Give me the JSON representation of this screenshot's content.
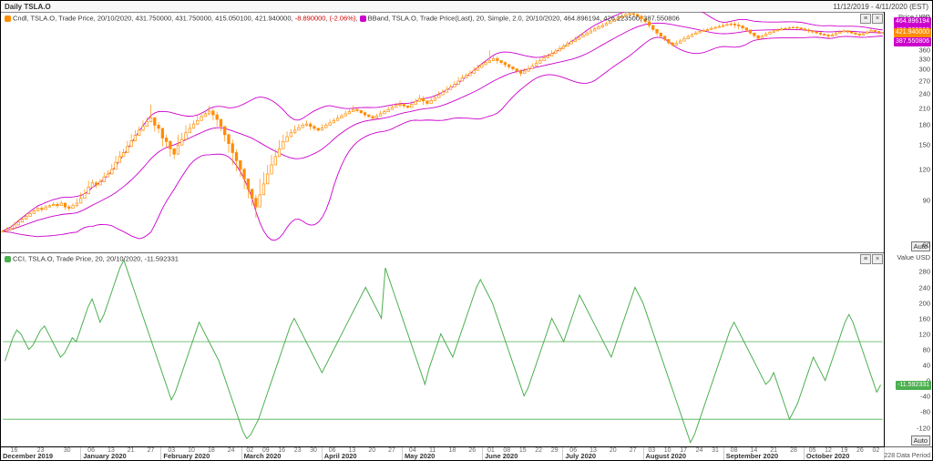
{
  "header": {
    "title": "Daily TSLA.O",
    "dateRange": "11/12/2019 - 4/11/2020 (EST)"
  },
  "footer": "228 Data Period",
  "xaxis": {
    "months": [
      "December 2019",
      "January 2020",
      "February 2020",
      "March 2020",
      "April 2020",
      "May 2020",
      "June 2020",
      "July 2020",
      "August 2020",
      "September 2020",
      "October 2020"
    ],
    "days_per_month": [
      "16 23 30",
      "06 13 21 27",
      "03 10 18 24",
      "02 09 16 23 30",
      "06 13 20 27",
      "04 11 18 26",
      "01 08 15 22 29",
      "06 13 20 27",
      "03 10 17 24 31",
      "08 14 21 28",
      "05 12 19 26 02"
    ]
  },
  "pane1": {
    "legend": {
      "cndl": {
        "color": "#ff8c00",
        "text": "Cndl, TSLA.O, Trade Price, 20/10/2020, 431.750000, 431.750000, 415.050100, 421.940000,"
      },
      "chg": {
        "abs": "-8.890000",
        "pct": "(-2.06%)",
        "color": "#d00000"
      },
      "bband": {
        "color": "#cc00cc",
        "text": "BBand, TSLA.O, Trade Price(Last), 20, Simple, 2.0, 20/10/2020, 464.896194, 426.223500, 387.550806"
      }
    },
    "yaxis": {
      "label": "Price\nUSD",
      "scale": "log",
      "min": 56,
      "max": 510,
      "ticks": [
        480,
        450,
        420,
        390,
        360,
        330,
        300,
        270,
        240,
        210,
        180,
        150,
        120,
        90,
        60
      ],
      "markers": [
        {
          "v": 464.896194,
          "label": "464.896194",
          "bg": "#cc00cc"
        },
        {
          "v": 426.2235,
          "label": "426.223500",
          "bg": "#cc00cc"
        },
        {
          "v": 421.94,
          "label": "421.940000",
          "bg": "#ff8c00"
        },
        {
          "v": 387.550806,
          "label": "387.550806",
          "bg": "#cc00cc"
        }
      ]
    },
    "auto": "Auto",
    "series": {
      "close": [
        68,
        69,
        70,
        72,
        74,
        76,
        78,
        80,
        82,
        84,
        83,
        85,
        86,
        87,
        86,
        88,
        85,
        84,
        86,
        88,
        92,
        96,
        102,
        106,
        104,
        107,
        112,
        115,
        120,
        128,
        135,
        140,
        148,
        156,
        164,
        172,
        178,
        186,
        193,
        180,
        175,
        160,
        155,
        145,
        138,
        150,
        158,
        168,
        175,
        182,
        188,
        195,
        200,
        205,
        198,
        190,
        178,
        165,
        152,
        140,
        130,
        120,
        110,
        100,
        92,
        85,
        95,
        105,
        115,
        125,
        135,
        145,
        155,
        162,
        168,
        172,
        176,
        180,
        182,
        178,
        175,
        172,
        176,
        180,
        184,
        188,
        192,
        196,
        200,
        204,
        208,
        206,
        202,
        198,
        195,
        192,
        196,
        200,
        204,
        208,
        212,
        216,
        218,
        215,
        212,
        218,
        224,
        230,
        225,
        220,
        226,
        232,
        238,
        244,
        250,
        256,
        262,
        270,
        278,
        284,
        290,
        298,
        306,
        314,
        320,
        326,
        332,
        326,
        320,
        314,
        308,
        302,
        296,
        290,
        296,
        302,
        310,
        318,
        326,
        334,
        340,
        348,
        356,
        364,
        372,
        380,
        388,
        396,
        404,
        412,
        420,
        428,
        436,
        444,
        450,
        458,
        466,
        474,
        482,
        490,
        498,
        502,
        498,
        490,
        478,
        466,
        450,
        434,
        420,
        408,
        396,
        384,
        376,
        382,
        390,
        398,
        406,
        414,
        420,
        426,
        430,
        434,
        438,
        442,
        446,
        450,
        454,
        456,
        452,
        448,
        440,
        432,
        420,
        410,
        400,
        408,
        416,
        422,
        428,
        432,
        436,
        438,
        440,
        442,
        440,
        436,
        432,
        428,
        424,
        420,
        416,
        412,
        408,
        412,
        418,
        424,
        428,
        424,
        420,
        416,
        412,
        418,
        424,
        430,
        426,
        422,
        421.94
      ],
      "high_off": [
        1,
        1.5,
        1,
        2,
        1.5,
        1,
        2,
        1.5,
        1,
        2,
        2.5,
        1.5,
        1,
        2,
        3,
        2,
        3,
        2.5,
        2,
        4,
        5,
        4,
        6,
        3,
        4,
        3,
        5,
        4,
        6,
        8,
        7,
        5,
        8,
        10,
        8,
        6,
        10,
        8,
        25,
        12,
        10,
        15,
        10,
        12,
        8,
        15,
        10,
        12,
        8,
        6,
        10,
        8,
        6,
        10,
        12,
        14,
        10,
        12,
        15,
        18,
        14,
        10,
        12,
        10,
        8,
        10,
        15,
        12,
        10,
        12,
        10,
        12,
        10,
        8,
        6,
        8,
        6,
        4,
        6,
        8,
        6,
        4,
        6,
        4,
        6,
        4,
        6,
        4,
        6,
        4,
        8,
        6,
        4,
        6,
        4,
        6,
        4,
        6,
        4,
        6,
        4,
        6,
        8,
        6,
        4,
        8,
        6,
        8,
        10,
        6,
        8,
        6,
        8,
        6,
        8,
        6,
        8,
        10,
        8,
        6,
        8,
        10,
        8,
        6,
        8,
        32,
        10,
        12,
        8,
        10,
        8,
        6,
        8,
        10,
        8,
        10,
        8,
        10,
        8,
        10,
        8,
        10,
        8,
        10,
        8,
        10,
        8,
        10,
        8,
        10,
        8,
        10,
        8,
        10,
        12,
        8,
        10,
        8,
        10,
        25,
        12,
        14,
        16,
        12,
        18,
        14,
        12,
        10,
        12,
        10,
        8,
        10,
        8,
        10,
        8,
        10,
        8,
        6,
        8,
        6,
        8,
        6,
        8,
        6,
        8,
        10,
        8,
        12,
        14,
        16,
        12,
        10,
        8,
        10,
        8,
        6,
        8,
        6,
        8,
        6,
        8,
        6,
        8,
        6,
        8,
        6,
        8,
        10,
        8,
        6,
        8,
        6,
        10,
        8,
        6,
        8,
        6,
        8,
        6,
        8,
        10,
        8,
        6,
        8,
        6,
        4
      ],
      "low_off": [
        1,
        1,
        1.5,
        1,
        1,
        1.5,
        1,
        1,
        1.5,
        1,
        2,
        1,
        1.5,
        1,
        2,
        1,
        2,
        2,
        1.5,
        3,
        4,
        3,
        4,
        2,
        3,
        2,
        4,
        3,
        5,
        6,
        5,
        4,
        6,
        8,
        6,
        4,
        8,
        6,
        4,
        10,
        8,
        12,
        8,
        10,
        6,
        4,
        8,
        10,
        6,
        4,
        8,
        6,
        4,
        8,
        10,
        12,
        8,
        10,
        12,
        15,
        12,
        8,
        10,
        8,
        6,
        8,
        4,
        10,
        8,
        10,
        8,
        10,
        8,
        6,
        4,
        6,
        4,
        2,
        4,
        6,
        4,
        2,
        4,
        2,
        4,
        2,
        4,
        2,
        4,
        2,
        4,
        4,
        2,
        4,
        2,
        4,
        2,
        4,
        2,
        4,
        2,
        4,
        6,
        4,
        2,
        4,
        4,
        6,
        8,
        4,
        6,
        4,
        6,
        4,
        6,
        4,
        6,
        8,
        6,
        4,
        6,
        8,
        6,
        4,
        6,
        4,
        8,
        10,
        6,
        8,
        6,
        4,
        6,
        8,
        6,
        8,
        6,
        8,
        6,
        8,
        6,
        8,
        6,
        8,
        6,
        8,
        6,
        8,
        6,
        8,
        6,
        8,
        6,
        8,
        10,
        6,
        8,
        6,
        8,
        6,
        10,
        12,
        14,
        10,
        16,
        12,
        10,
        8,
        10,
        8,
        6,
        8,
        6,
        8,
        6,
        8,
        6,
        4,
        6,
        4,
        6,
        4,
        6,
        4,
        6,
        8,
        6,
        10,
        12,
        14,
        10,
        8,
        6,
        8,
        6,
        4,
        6,
        4,
        6,
        4,
        6,
        4,
        6,
        4,
        6,
        4,
        6,
        8,
        6,
        4,
        6,
        4,
        8,
        6,
        4,
        6,
        4,
        6,
        4,
        6,
        8,
        6,
        4,
        6,
        4,
        7
      ],
      "bb_color": "#cc00cc",
      "cndl_color": "#ff8c00"
    }
  },
  "pane2": {
    "legend": {
      "color": "#4caf50",
      "text": "CCI, TSLA.O, Trade Price, 20, 20/10/2020, -11.592331"
    },
    "yaxis": {
      "label": "Value\nUSD",
      "min": -170,
      "max": 330,
      "ticks": [
        280,
        240,
        200,
        160,
        120,
        80,
        40,
        0,
        -40,
        -80,
        -120
      ],
      "marker": {
        "v": -11.592331,
        "label": "-11.592331",
        "bg": "#4caf50"
      }
    },
    "auto": "Auto",
    "ref_lines": [
      100,
      -100
    ],
    "series": {
      "color": "#4caf50",
      "vals": [
        50,
        80,
        110,
        130,
        120,
        100,
        80,
        90,
        110,
        130,
        140,
        120,
        100,
        80,
        60,
        70,
        90,
        110,
        100,
        130,
        160,
        190,
        210,
        180,
        150,
        170,
        200,
        230,
        260,
        290,
        310,
        280,
        250,
        220,
        190,
        160,
        130,
        100,
        70,
        40,
        10,
        -20,
        -50,
        -30,
        0,
        30,
        60,
        90,
        120,
        150,
        130,
        110,
        90,
        70,
        50,
        20,
        -10,
        -40,
        -70,
        -100,
        -130,
        -150,
        -140,
        -120,
        -100,
        -70,
        -40,
        -10,
        20,
        50,
        80,
        110,
        140,
        160,
        140,
        120,
        100,
        80,
        60,
        40,
        20,
        40,
        60,
        80,
        100,
        120,
        140,
        160,
        180,
        200,
        220,
        240,
        220,
        200,
        180,
        160,
        290,
        260,
        230,
        200,
        170,
        140,
        110,
        80,
        50,
        20,
        -10,
        30,
        60,
        90,
        120,
        100,
        80,
        60,
        90,
        120,
        150,
        180,
        210,
        240,
        260,
        240,
        220,
        200,
        170,
        140,
        110,
        80,
        50,
        20,
        -10,
        -40,
        -20,
        10,
        40,
        70,
        100,
        130,
        160,
        140,
        120,
        100,
        130,
        160,
        190,
        220,
        200,
        180,
        160,
        140,
        120,
        100,
        80,
        60,
        90,
        120,
        150,
        180,
        210,
        240,
        220,
        200,
        170,
        140,
        110,
        80,
        50,
        20,
        -10,
        -40,
        -70,
        -100,
        -130,
        -160,
        -140,
        -110,
        -80,
        -50,
        -20,
        10,
        40,
        70,
        100,
        130,
        150,
        130,
        110,
        90,
        70,
        50,
        30,
        10,
        -10,
        0,
        20,
        -10,
        -40,
        -70,
        -100,
        -80,
        -60,
        -30,
        0,
        30,
        60,
        40,
        20,
        0,
        30,
        60,
        90,
        120,
        150,
        170,
        150,
        120,
        90,
        60,
        30,
        0,
        -30,
        -11.59
      ]
    }
  }
}
